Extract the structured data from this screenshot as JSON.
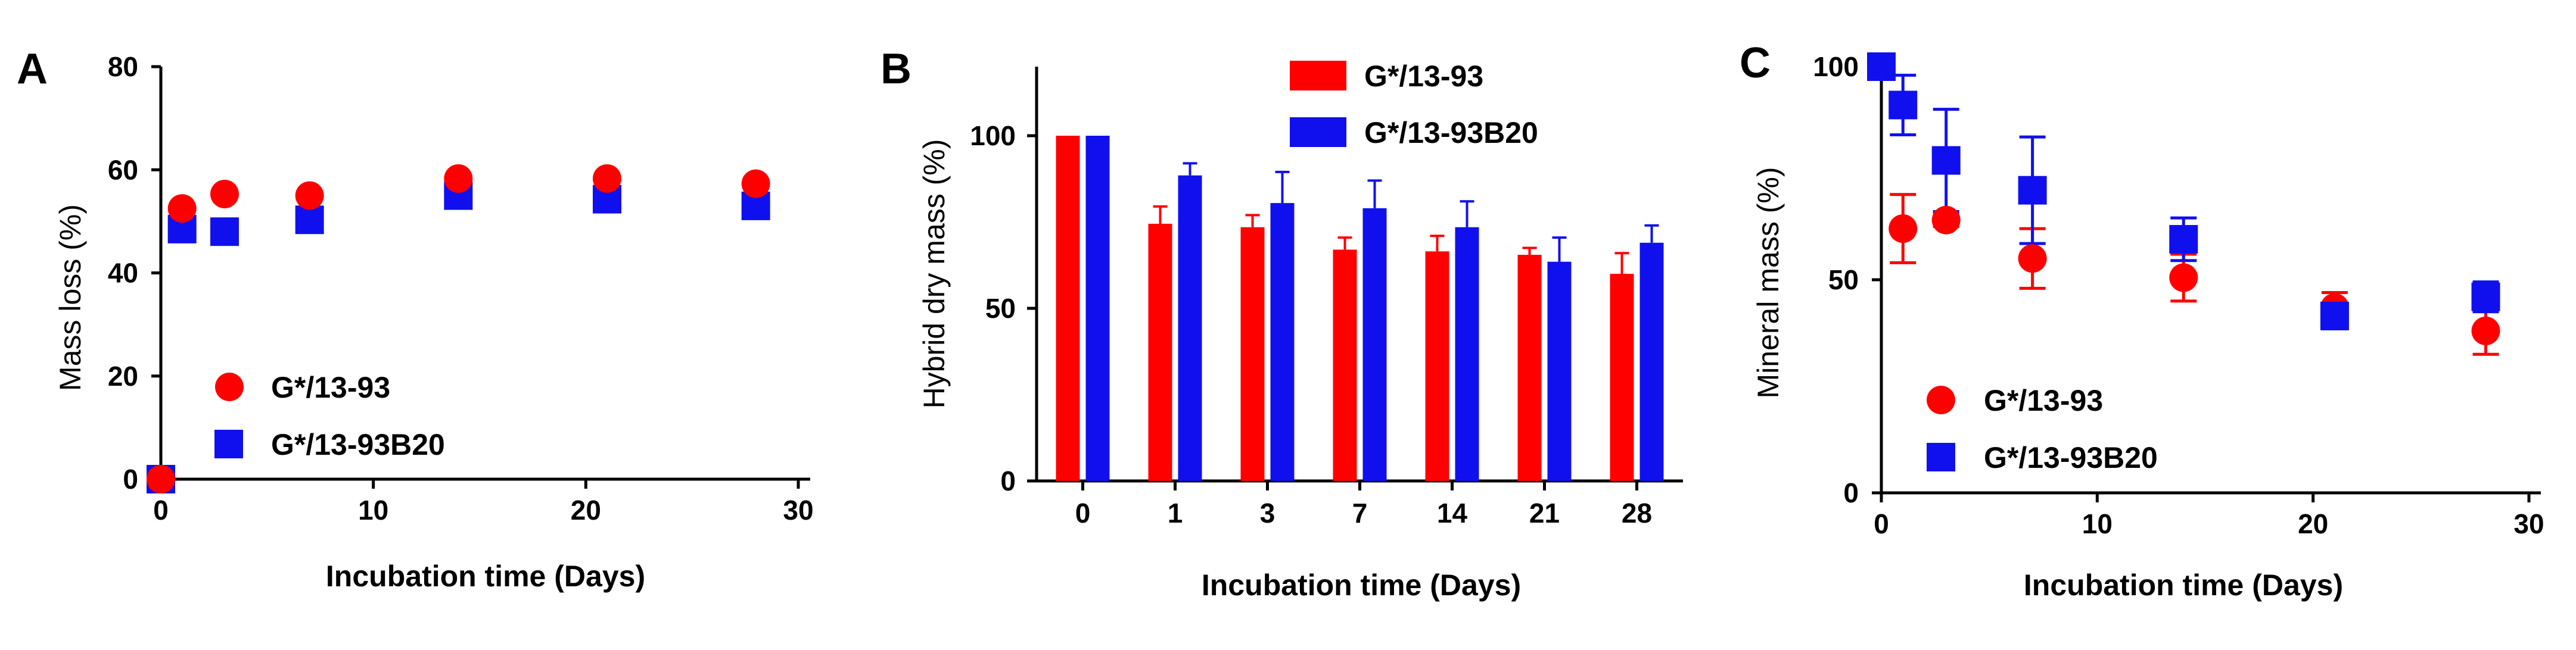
{
  "colors": {
    "red": "#ff0000",
    "blue": "#1010ee"
  },
  "chart_data": [
    {
      "panel": "A",
      "type": "scatter",
      "xlabel": "Incubation time (Days)",
      "ylabel": "Mass loss (%)",
      "xlim": [
        0,
        30
      ],
      "ylim": [
        0,
        80
      ],
      "xticks": [
        0,
        10,
        20,
        30
      ],
      "yticks": [
        0,
        20,
        40,
        60,
        80
      ],
      "legend": "center-left",
      "series": [
        {
          "name": "G*/13-93",
          "marker": "circle",
          "color": "red",
          "x": [
            0,
            1,
            3,
            7,
            14,
            21,
            28
          ],
          "y": [
            0,
            52.5,
            55.3,
            55.0,
            58.3,
            58.3,
            57.3
          ]
        },
        {
          "name": "G*/13-93B20",
          "marker": "square",
          "color": "blue",
          "x": [
            0,
            1,
            3,
            7,
            14,
            21,
            28
          ],
          "y": [
            0,
            48.5,
            48.0,
            50.3,
            55.0,
            54.3,
            53.0
          ]
        }
      ]
    },
    {
      "panel": "B",
      "type": "bar",
      "xlabel": "Incubation time (Days)",
      "ylabel": "Hybrid dry mass (%)",
      "categories": [
        "0",
        "1",
        "3",
        "7",
        "14",
        "21",
        "28"
      ],
      "ylim": [
        0,
        120
      ],
      "yticks": [
        0,
        50,
        100
      ],
      "legend": "top",
      "series": [
        {
          "name": "G*/13-93",
          "color": "red",
          "values": [
            100,
            74.5,
            73.5,
            67.0,
            66.5,
            65.5,
            60.0
          ],
          "errors": [
            0,
            5.0,
            3.5,
            3.5,
            4.5,
            2.0,
            6.0
          ]
        },
        {
          "name": "G*/13-93B20",
          "color": "blue",
          "values": [
            100,
            88.5,
            80.5,
            79.0,
            73.5,
            63.5,
            69.0
          ],
          "errors": [
            0,
            3.5,
            9.0,
            8.0,
            7.5,
            7.0,
            5.0
          ]
        }
      ]
    },
    {
      "panel": "C",
      "type": "scatter",
      "xlabel": "Incubation time (Days)",
      "ylabel": "Mineral mass (%)",
      "xlim": [
        0,
        30
      ],
      "ylim": [
        0,
        100
      ],
      "xticks": [
        0,
        10,
        20,
        30
      ],
      "yticks": [
        0,
        50,
        100
      ],
      "legend": "bottom-left",
      "series": [
        {
          "name": "G*/13-93",
          "marker": "circle",
          "color": "red",
          "x": [
            0,
            1,
            3,
            7,
            14,
            21,
            28
          ],
          "y": [
            100,
            62.0,
            64.0,
            55.0,
            50.5,
            43.5,
            38.0
          ],
          "errors": [
            0,
            8.0,
            1.5,
            7.0,
            5.5,
            3.5,
            5.5
          ]
        },
        {
          "name": "G*/13-93B20",
          "marker": "square",
          "color": "blue",
          "x": [
            0,
            1,
            3,
            7,
            14,
            21,
            28
          ],
          "y": [
            100,
            91.0,
            78.0,
            71.0,
            59.5,
            41.5,
            46.0
          ],
          "errors": [
            0,
            7.0,
            12.0,
            12.5,
            5.0,
            3.0,
            3.5
          ]
        }
      ]
    }
  ]
}
